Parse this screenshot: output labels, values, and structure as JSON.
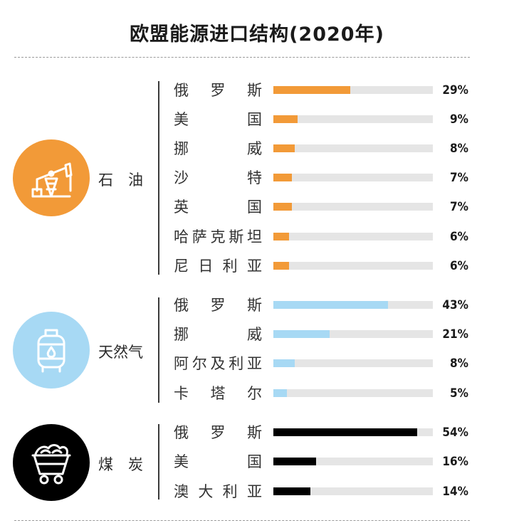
{
  "title": "欧盟能源进口结构(2020年)",
  "colors": {
    "oil": "#f29a38",
    "gas": "#a7d9f4",
    "coal": "#000000",
    "track": "#e5e5e5"
  },
  "groups": [
    {
      "key": "oil",
      "label": "石　油",
      "icon": "oil-pump-icon"
    },
    {
      "key": "gas",
      "label": "天然气",
      "icon": "gas-cylinder-icon"
    },
    {
      "key": "coal",
      "label": "煤　炭",
      "icon": "coal-cart-icon"
    }
  ],
  "chart_data": {
    "type": "bar",
    "orientation": "horizontal",
    "title": "欧盟能源进口结构(2020年)",
    "unit": "%",
    "xlim": [
      0,
      60
    ],
    "grid": false,
    "series": [
      {
        "name": "石　油",
        "categories": [
          "俄罗斯",
          "美国",
          "挪威",
          "沙特",
          "英国",
          "哈萨克斯坦",
          "尼日利亚"
        ],
        "values": [
          29,
          9,
          8,
          7,
          7,
          6,
          6
        ],
        "labels": [
          "29%",
          "9%",
          "8%",
          "7%",
          "7%",
          "6%",
          "6%"
        ]
      },
      {
        "name": "天然气",
        "categories": [
          "俄罗斯",
          "挪威",
          "阿尔及利亚",
          "卡塔尔"
        ],
        "values": [
          43,
          21,
          8,
          5
        ],
        "labels": [
          "43%",
          "21%",
          "8%",
          "5%"
        ]
      },
      {
        "name": "煤　炭",
        "categories": [
          "俄罗斯",
          "美国",
          "澳大利亚"
        ],
        "values": [
          54,
          16,
          14
        ],
        "labels": [
          "54%",
          "16%",
          "14%"
        ]
      }
    ]
  }
}
